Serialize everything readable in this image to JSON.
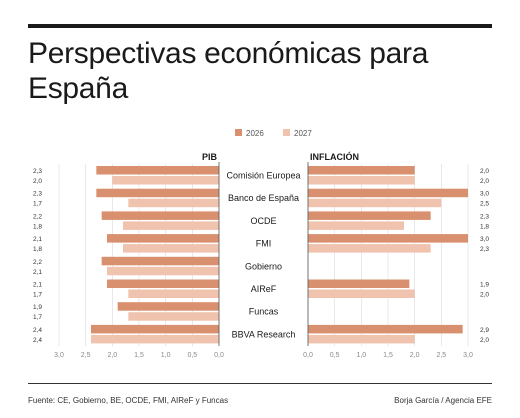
{
  "title": "Perspectivas económicas para España",
  "source": "Fuente: CE, Gobierno, BE, OCDE, FMI, AIReF y Funcas",
  "credit": "Borja García / Agencia EFE",
  "chart_data": [
    {
      "type": "bar",
      "panel": "PIB",
      "title": "PIB",
      "orientation": "horizontal",
      "direction": "leftward",
      "categories": [
        "Comisión Europea",
        "Banco de España",
        "OCDE",
        "FMI",
        "Gobierno",
        "AIReF",
        "Funcas",
        "BBVA Research"
      ],
      "series": [
        {
          "name": "2026",
          "color": "#d9906f",
          "values": [
            2.3,
            2.3,
            2.2,
            2.1,
            2.2,
            2.1,
            1.9,
            2.4
          ]
        },
        {
          "name": "2027",
          "color": "#efc3ad",
          "values": [
            2.0,
            1.7,
            1.8,
            1.8,
            2.1,
            1.7,
            1.7,
            2.4
          ]
        }
      ],
      "xlim": [
        0,
        3.0
      ],
      "ticks": [
        "3,0",
        "2,5",
        "2,0",
        "1,5",
        "1,0",
        "0,5",
        "0,0"
      ],
      "tick_values": [
        3.0,
        2.5,
        2.0,
        1.5,
        1.0,
        0.5,
        0.0
      ],
      "value_labels": [
        [
          "2,3",
          "2,0"
        ],
        [
          "2,3",
          "1,7"
        ],
        [
          "2,2",
          "1,8"
        ],
        [
          "2,1",
          "1,8"
        ],
        [
          "2,2",
          "2,1"
        ],
        [
          "2,1",
          "1,7"
        ],
        [
          "1,9",
          "1,7"
        ],
        [
          "2,4",
          "2,4"
        ]
      ],
      "grid": true
    },
    {
      "type": "bar",
      "panel": "INFLACIÓN",
      "title": "INFLACIÓN",
      "orientation": "horizontal",
      "direction": "rightward",
      "categories": [
        "Comisión Europea",
        "Banco de España",
        "OCDE",
        "FMI",
        "Gobierno",
        "AIReF",
        "Funcas",
        "BBVA Research"
      ],
      "series": [
        {
          "name": "2026",
          "color": "#d9906f",
          "values": [
            2.0,
            3.0,
            2.3,
            3.0,
            null,
            1.9,
            null,
            2.9
          ]
        },
        {
          "name": "2027",
          "color": "#efc3ad",
          "values": [
            2.0,
            2.5,
            1.8,
            2.3,
            null,
            2.0,
            null,
            2.0
          ]
        }
      ],
      "xlim": [
        0,
        3.0
      ],
      "ticks": [
        "0,0",
        "0,5",
        "1,0",
        "1,5",
        "2,0",
        "2,5",
        "3,0"
      ],
      "tick_values": [
        0.0,
        0.5,
        1.0,
        1.5,
        2.0,
        2.5,
        3.0
      ],
      "value_labels": [
        [
          "2,0",
          "2,0"
        ],
        [
          "3,0",
          "2,5"
        ],
        [
          "2,3",
          "1,8"
        ],
        [
          "3,0",
          "2,3"
        ],
        [
          "",
          ""
        ],
        [
          "1,9",
          "2,0"
        ],
        [
          "",
          ""
        ],
        [
          "2,9",
          "2,0"
        ]
      ],
      "grid": true
    }
  ],
  "legend": {
    "placement": "top-center",
    "items": [
      {
        "label": "2026",
        "color": "#d9906f"
      },
      {
        "label": "2027",
        "color": "#efc3ad"
      }
    ]
  }
}
